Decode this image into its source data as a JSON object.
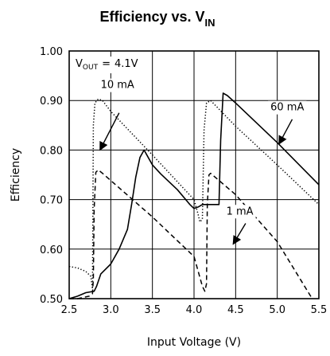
{
  "chart_data": {
    "type": "line",
    "title": "Efficiency vs. V",
    "title_sub": "IN",
    "xlabel": "Input Voltage (V)",
    "ylabel": "Efficiency",
    "xlim": [
      2.5,
      5.5
    ],
    "ylim": [
      0.5,
      1.0
    ],
    "xticks": [
      "2.5",
      "3.0",
      "3.5",
      "4.0",
      "4.5",
      "5.0",
      "5.5"
    ],
    "yticks": [
      "0.50",
      "0.60",
      "0.70",
      "0.80",
      "0.90",
      "1.00"
    ],
    "grid": true,
    "annotation_vout": {
      "prefix": "V",
      "sub": "OUT",
      "equals": "=",
      "value": "4.1V"
    },
    "series": [
      {
        "name": "10 mA",
        "style": "dotted",
        "points": [
          [
            2.5,
            0.565
          ],
          [
            2.6,
            0.562
          ],
          [
            2.7,
            0.555
          ],
          [
            2.76,
            0.545
          ],
          [
            2.78,
            0.52
          ],
          [
            2.79,
            0.85
          ],
          [
            2.81,
            0.895
          ],
          [
            2.85,
            0.903
          ],
          [
            2.9,
            0.9
          ],
          [
            3.0,
            0.878
          ],
          [
            3.5,
            0.79
          ],
          [
            4.0,
            0.7
          ],
          [
            4.05,
            0.67
          ],
          [
            4.07,
            0.655
          ],
          [
            4.1,
            0.66
          ],
          [
            4.12,
            0.84
          ],
          [
            4.15,
            0.895
          ],
          [
            4.2,
            0.9
          ],
          [
            4.5,
            0.848
          ],
          [
            5.0,
            0.77
          ],
          [
            5.5,
            0.69
          ]
        ]
      },
      {
        "name": "1 mA",
        "style": "dashed",
        "points": [
          [
            2.5,
            0.5
          ],
          [
            2.6,
            0.5
          ],
          [
            2.74,
            0.505
          ],
          [
            2.78,
            0.51
          ],
          [
            2.79,
            0.54
          ],
          [
            2.8,
            0.68
          ],
          [
            2.82,
            0.755
          ],
          [
            2.85,
            0.76
          ],
          [
            2.9,
            0.753
          ],
          [
            3.5,
            0.665
          ],
          [
            4.0,
            0.585
          ],
          [
            4.1,
            0.525
          ],
          [
            4.13,
            0.515
          ],
          [
            4.15,
            0.53
          ],
          [
            4.16,
            0.69
          ],
          [
            4.18,
            0.75
          ],
          [
            4.2,
            0.753
          ],
          [
            4.5,
            0.71
          ],
          [
            5.0,
            0.615
          ],
          [
            5.42,
            0.5
          ]
        ]
      },
      {
        "name": "60 mA",
        "style": "solid",
        "points": [
          [
            2.5,
            0.5
          ],
          [
            2.6,
            0.505
          ],
          [
            2.7,
            0.512
          ],
          [
            2.8,
            0.515
          ],
          [
            2.83,
            0.525
          ],
          [
            2.88,
            0.55
          ],
          [
            3.0,
            0.57
          ],
          [
            3.1,
            0.6
          ],
          [
            3.2,
            0.64
          ],
          [
            3.25,
            0.69
          ],
          [
            3.3,
            0.745
          ],
          [
            3.35,
            0.785
          ],
          [
            3.4,
            0.8
          ],
          [
            3.45,
            0.785
          ],
          [
            3.5,
            0.77
          ],
          [
            3.6,
            0.752
          ],
          [
            3.8,
            0.72
          ],
          [
            3.95,
            0.69
          ],
          [
            4.0,
            0.682
          ],
          [
            4.05,
            0.685
          ],
          [
            4.1,
            0.69
          ],
          [
            4.3,
            0.69
          ],
          [
            4.32,
            0.82
          ],
          [
            4.35,
            0.915
          ],
          [
            4.4,
            0.91
          ],
          [
            4.5,
            0.895
          ],
          [
            5.0,
            0.815
          ],
          [
            5.5,
            0.73
          ]
        ]
      }
    ],
    "callouts": [
      {
        "text": "10 mA",
        "text_at": [
          3.08,
          0.925
        ],
        "arrow_from": [
          3.1,
          0.875
        ],
        "arrow_to": [
          2.87,
          0.8
        ]
      },
      {
        "text": "60 mA",
        "text_at": [
          5.12,
          0.88
        ],
        "arrow_from": [
          5.18,
          0.862
        ],
        "arrow_to": [
          5.02,
          0.812
        ]
      },
      {
        "text": "1 mA",
        "text_at": [
          4.55,
          0.67
        ],
        "arrow_from": [
          4.62,
          0.652
        ],
        "arrow_to": [
          4.47,
          0.61
        ]
      }
    ]
  }
}
